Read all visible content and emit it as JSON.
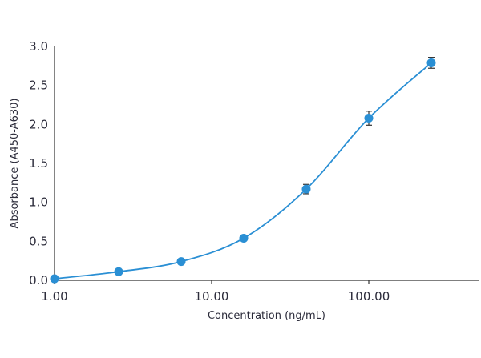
{
  "colors": {
    "series": "#2a8fd4",
    "axis": "#333333",
    "text": "#2b2b3a"
  },
  "chart_data": {
    "type": "scatter",
    "xlabel": "Concentration (ng/mL)",
    "ylabel": "Absorbance (A450-A630)",
    "xscale": "log",
    "xlim": [
      1,
      400
    ],
    "ylim": [
      0,
      3
    ],
    "x_ticks": [
      1,
      10,
      100
    ],
    "x_tick_labels": [
      "1.00",
      "10.00",
      "100.00"
    ],
    "y_ticks": [
      0,
      0.5,
      1,
      1.5,
      2,
      2.5,
      3
    ],
    "y_tick_labels": [
      "0.0",
      "0.5",
      "1.0",
      "1.5",
      "2.0",
      "2.5",
      "3.0"
    ],
    "grid": false,
    "fit_curve": true,
    "series": [
      {
        "points": [
          {
            "x": 1.0,
            "y": 0.02,
            "err": 0
          },
          {
            "x": 2.56,
            "y": 0.11,
            "err": 0
          },
          {
            "x": 6.4,
            "y": 0.24,
            "err": 0
          },
          {
            "x": 16.0,
            "y": 0.54,
            "err": 0
          },
          {
            "x": 40.0,
            "y": 1.17,
            "err": 0.06
          },
          {
            "x": 100.0,
            "y": 2.08,
            "err": 0.09
          },
          {
            "x": 250.0,
            "y": 2.79,
            "err": 0.07
          }
        ]
      }
    ]
  }
}
